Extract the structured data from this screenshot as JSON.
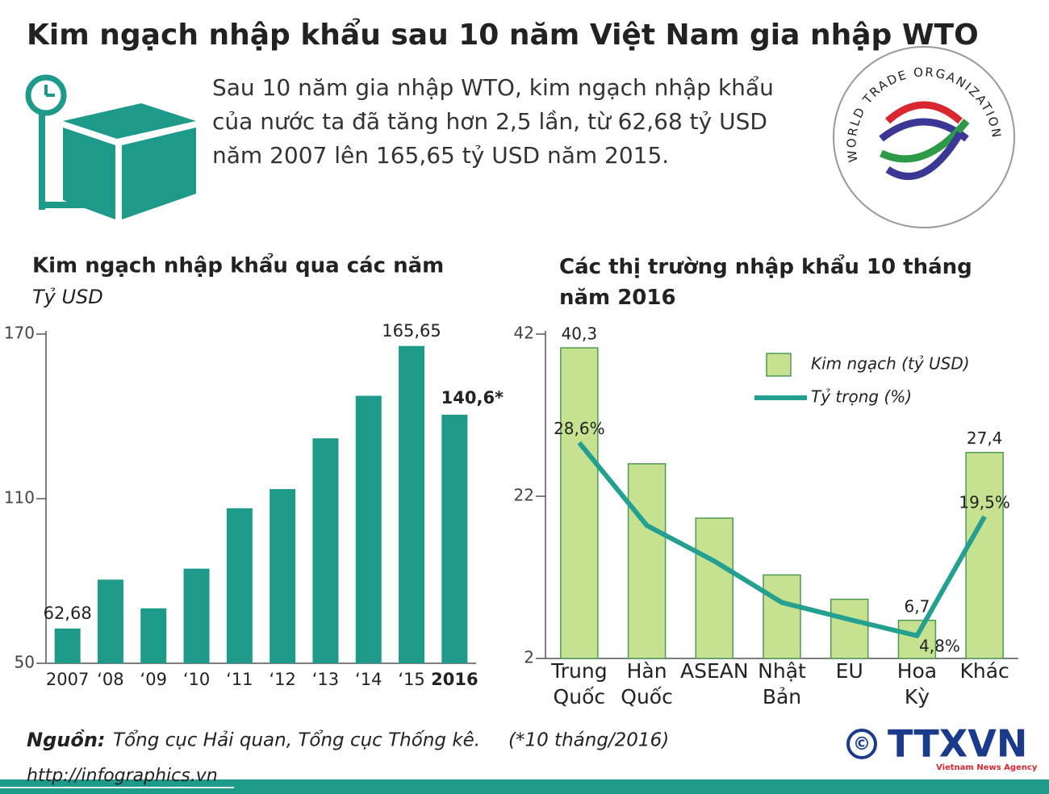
{
  "header": {
    "title": "Kim ngạch nhập khẩu sau 10 năm Việt Nam gia nhập WTO",
    "description": "Sau 10 năm gia nhập WTO, kim ngạch nhập khẩu của nước ta đã tăng hơn 2,5 lần,  từ 62,68 tỷ USD năm 2007 lên 165,65 tỷ USD năm 2015.",
    "wto_logo": "WORLD TRADE ORGANIZATION"
  },
  "chart_data": [
    {
      "type": "bar",
      "title": "Kim ngạch nhập khẩu qua các năm",
      "subtitle": "Tỷ USD",
      "categories": [
        "2007",
        "‘08",
        "‘09",
        "‘10",
        "‘11",
        "‘12",
        "‘13",
        "‘14",
        "‘15",
        "2016"
      ],
      "values": [
        62.68,
        80.5,
        70,
        84.5,
        106.5,
        113.5,
        132,
        147.5,
        165.65,
        140.6
      ],
      "value_labels": [
        "62,68",
        null,
        null,
        null,
        null,
        null,
        null,
        null,
        "165,65",
        "140,6*"
      ],
      "color": "#1e9a8b",
      "ylim": [
        50,
        170
      ],
      "yticks": [
        50,
        110,
        170
      ]
    },
    {
      "type": "bar-line",
      "title": "Các thị trường nhập khẩu 10 tháng năm 2016",
      "categories": [
        "Trung Quốc",
        "Hàn Quốc",
        "ASEAN",
        "Nhật Bản",
        "EU",
        "Hoa Kỳ",
        "Khác"
      ],
      "series": [
        {
          "name": "Kim ngạch (tỷ USD)",
          "type": "bar",
          "color": "#c6e18f",
          "values": [
            40.3,
            26,
            19.3,
            12.3,
            9.3,
            6.7,
            27.4
          ],
          "value_labels": [
            "40,3",
            null,
            null,
            null,
            null,
            "6,7",
            "27,4"
          ]
        },
        {
          "name": "Tỷ trọng (%)",
          "type": "line",
          "color": "#23a090",
          "values": [
            28.6,
            18.4,
            14,
            8.9,
            6.8,
            4.8,
            19.5
          ],
          "value_labels": [
            "28,6%",
            null,
            null,
            null,
            null,
            "4,8%",
            "19,5%"
          ]
        }
      ],
      "ylim": [
        2,
        42
      ],
      "yticks": [
        2,
        22,
        42
      ]
    }
  ],
  "footer": {
    "source_label": "Nguồn:",
    "source": "Tổng cục Hải quan, Tổng cục Thống kê.",
    "note": "(*10 tháng/2016)",
    "url": "http://infographics.vn",
    "agency": "TTXVN",
    "agency_sub": "Vietnam News Agency",
    "copyright": "©"
  }
}
